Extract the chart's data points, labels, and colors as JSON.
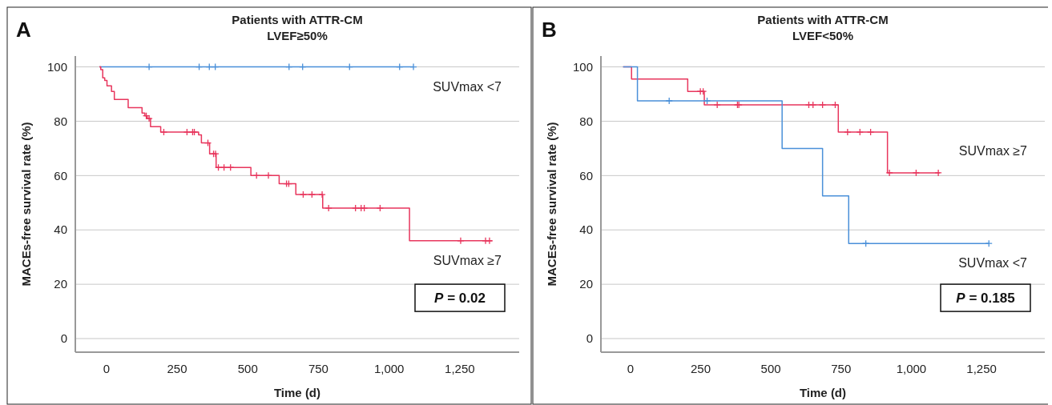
{
  "chart_data": [
    {
      "type": "step",
      "title": "Patients with ATTR-CM\nLVEF≥50%",
      "xlabel": "Time (d)",
      "ylabel": "MACEs-free survival rate (%)",
      "annotations": [
        "A",
        "P = 0.02"
      ],
      "xlim": [
        -110,
        1460
      ],
      "xticks": [
        0,
        250,
        500,
        {
          "value": 750,
          "label": "750"
        },
        {
          "value": 1000,
          "label": "1,000"
        },
        {
          "value": 1250,
          "label": "1,250"
        }
      ],
      "ylim": [
        -5,
        104
      ],
      "yticks": [
        0,
        20,
        40,
        60,
        80,
        100
      ],
      "grid": "y",
      "series": [
        {
          "name": "SUVmax <7",
          "color": "#4a90d9",
          "x": [
            -25,
            1086
          ],
          "values": [
            100,
            100
          ]
        },
        {
          "name": "SUVmax ≥7",
          "color": "#e8365d",
          "x": [
            -25,
            -20,
            -13,
            -6,
            2,
            18,
            28,
            77,
            126,
            136,
            144,
            156,
            192,
            326,
            336,
            365,
            388,
            511,
            611,
            670,
            765,
            1072,
            1364
          ],
          "values": [
            100,
            99,
            96,
            95,
            93,
            91,
            88,
            85,
            83,
            82,
            81,
            78,
            76,
            75,
            72,
            68,
            63,
            60,
            57,
            53,
            48,
            36,
            36
          ]
        },
        {
          "type": "scatter",
          "marker": "cross",
          "color": "#4a90d9",
          "x": [
            151,
            328,
            364,
            385,
            646,
            694,
            860,
            1037,
            1086
          ],
          "values": [
            100,
            100,
            100,
            100,
            100,
            100,
            100,
            100,
            100
          ]
        },
        {
          "type": "scatter",
          "marker": "cross",
          "color": "#e8365d",
          "x": [
            141,
            151,
            203,
            285,
            305,
            311,
            359,
            379,
            386,
            396,
            416,
            439,
            531,
            573,
            637,
            645,
            696,
            727,
            763,
            786,
            881,
            901,
            912,
            968,
            1253,
            1341,
            1355
          ],
          "values": [
            82,
            81,
            76,
            76,
            76,
            76,
            72,
            68,
            68,
            63,
            63,
            63,
            60,
            60,
            57,
            57,
            53,
            53,
            53,
            48,
            48,
            48,
            48,
            48,
            36,
            36,
            36
          ]
        }
      ]
    },
    {
      "type": "step",
      "title": "Patients with ATTR-CM\nLVEF<50%",
      "xlabel": "Time (d)",
      "ylabel": "MACEs-free survival rate (%)",
      "annotations": [
        "B",
        "P = 0.185"
      ],
      "xlim": [
        -105,
        1475
      ],
      "xticks": [
        0,
        250,
        500,
        {
          "value": 750,
          "label": "750"
        },
        {
          "value": 1000,
          "label": "1,000"
        },
        {
          "value": 1250,
          "label": "1,250"
        }
      ],
      "ylim": [
        -5,
        104
      ],
      "yticks": [
        0,
        20,
        40,
        60,
        80,
        100
      ],
      "grid": "y",
      "series": [
        {
          "name": "SUVmax ≥7",
          "color": "#e8365d",
          "x": [
            -26,
            4,
            204,
            263,
            740,
            915,
            1101
          ],
          "values": [
            100,
            95.5,
            91,
            86,
            76,
            61,
            61
          ]
        },
        {
          "name": "SUVmax <7",
          "color": "#4a90d9",
          "x": [
            -26,
            25,
            540,
            684,
            777,
            1276
          ],
          "values": [
            100,
            87.5,
            70,
            52.5,
            35,
            35
          ]
        },
        {
          "type": "scatter",
          "marker": "cross",
          "color": "#e8365d",
          "x": [
            249,
            259,
            309,
            381,
            386,
            635,
            650,
            684,
            729,
            773,
            817,
            855,
            922,
            1017,
            1096
          ],
          "values": [
            91,
            91,
            86,
            86,
            86,
            86,
            86,
            86,
            86,
            76,
            76,
            76,
            61,
            61,
            61
          ]
        },
        {
          "type": "scatter",
          "marker": "cross",
          "color": "#4a90d9",
          "x": [
            138,
            273,
            838,
            1276
          ],
          "values": [
            87.5,
            87.5,
            35,
            35
          ]
        }
      ]
    }
  ]
}
